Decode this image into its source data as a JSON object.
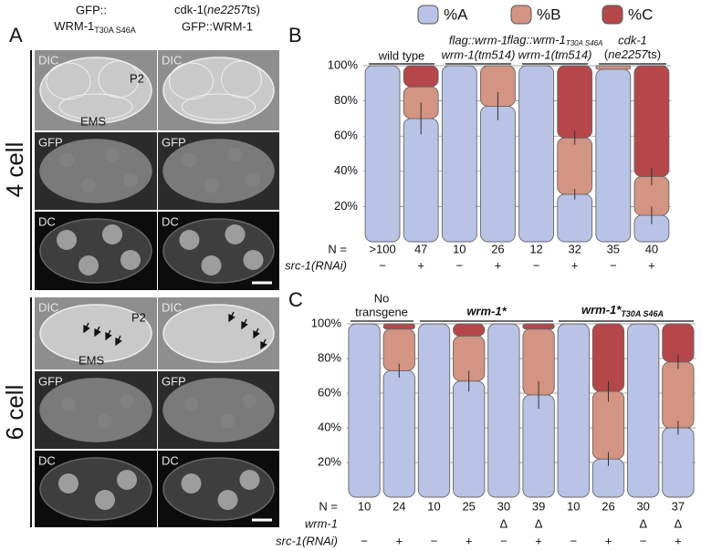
{
  "panel_a": {
    "label": "A",
    "col1": [
      "GFP::",
      "WRM-1",
      "T30A S46A"
    ],
    "col2": [
      "cdk-1(",
      "ne2257",
      "ts)",
      "GFP::WRM-1"
    ],
    "rows": [
      "4 cell",
      "6 cell"
    ],
    "channels": [
      "DIC",
      "GFP",
      "DC"
    ],
    "cells": [
      "P2",
      "EMS"
    ]
  },
  "chart_data": [
    {
      "type": "bar",
      "stacked": true,
      "panel_label": "B",
      "groups": [
        [
          "wild type"
        ],
        [
          "flag::wrm-1",
          "wrm-1(tm514)"
        ],
        [
          "flag::wrm-1",
          "T30A S46A",
          "wrm-1(tm514)"
        ],
        [
          "cdk-1",
          "(",
          "ne2257",
          "ts)"
        ]
      ],
      "row_labels": [
        "N =",
        "src-1(RNAi)"
      ],
      "categories": [
        ">100",
        "47",
        "10",
        "26",
        "12",
        "32",
        "35",
        "40"
      ],
      "rnai": [
        "−",
        "+",
        "−",
        "+",
        "−",
        "+",
        "−",
        "+"
      ],
      "series": [
        {
          "name": "%A",
          "color": "#b9c3e6",
          "values": [
            100,
            70,
            100,
            77,
            100,
            27,
            98,
            15
          ],
          "errors": [
            null,
            9,
            null,
            8,
            null,
            3,
            null,
            5
          ]
        },
        {
          "name": "%B",
          "color": "#d49483",
          "values": [
            0,
            18,
            0,
            23,
            0,
            32,
            2,
            22
          ],
          "errors": [
            null,
            null,
            null,
            null,
            null,
            4,
            null,
            5
          ]
        },
        {
          "name": "%C",
          "color": "#b5474a",
          "values": [
            0,
            12,
            0,
            0,
            0,
            41,
            0,
            63
          ]
        }
      ],
      "ylim": [
        0,
        100
      ],
      "yticks": [
        {
          "value": 20,
          "label": "20%"
        },
        {
          "value": 40,
          "label": "40%"
        },
        {
          "value": 60,
          "label": "60%"
        },
        {
          "value": 80,
          "label": "80%"
        },
        {
          "value": 100,
          "label": "100%"
        }
      ],
      "grid": true
    },
    {
      "type": "bar",
      "stacked": true,
      "panel_label": "C",
      "groups": [
        [
          "No",
          "transgene"
        ],
        [
          "wrm-1*"
        ],
        [
          "wrm-1*",
          "T30A S46A"
        ]
      ],
      "row_labels": [
        "N =",
        "wrm-1",
        "src-1(RNAi)"
      ],
      "categories": [
        "10",
        "24",
        "10",
        "25",
        "30",
        "39",
        "10",
        "26",
        "30",
        "37"
      ],
      "wrm1": [
        null,
        null,
        null,
        null,
        "Δ",
        "Δ",
        null,
        null,
        "Δ",
        "Δ"
      ],
      "rnai": [
        "−",
        "+",
        "−",
        "+",
        "−",
        "+",
        "−",
        "+",
        "−",
        "+"
      ],
      "series": [
        {
          "name": "%A",
          "color": "#b9c3e6",
          "values": [
            100,
            73,
            100,
            67,
            100,
            59,
            100,
            22,
            100,
            40
          ],
          "errors": [
            null,
            4,
            null,
            6,
            null,
            8,
            null,
            4,
            null,
            4
          ]
        },
        {
          "name": "%B",
          "color": "#d49483",
          "values": [
            0,
            24,
            0,
            26,
            0,
            38,
            0,
            39,
            0,
            38
          ],
          "errors": [
            null,
            null,
            null,
            null,
            null,
            null,
            null,
            6,
            null,
            4
          ]
        },
        {
          "name": "%C",
          "color": "#b5474a",
          "values": [
            0,
            3,
            0,
            7,
            0,
            3,
            0,
            39,
            0,
            22
          ]
        }
      ],
      "ylim": [
        0,
        100
      ],
      "yticks": [
        {
          "value": 20,
          "label": "20%"
        },
        {
          "value": 40,
          "label": "40%"
        },
        {
          "value": 60,
          "label": "60%"
        },
        {
          "value": 80,
          "label": "80%"
        },
        {
          "value": 100,
          "label": "100%"
        }
      ],
      "grid": true
    }
  ]
}
